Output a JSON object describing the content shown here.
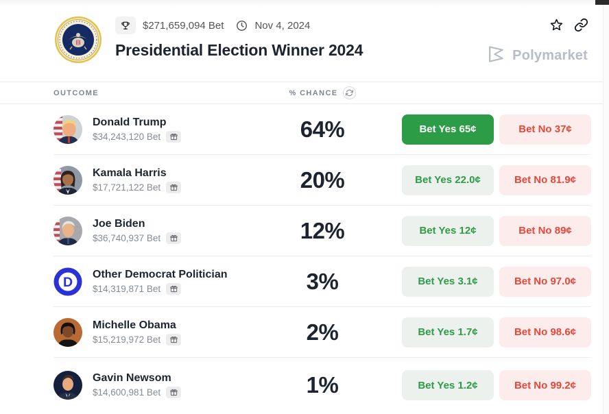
{
  "header": {
    "volume": "$271,659,094 Bet",
    "date": "Nov 4, 2024",
    "title": "Presidential Election Winner 2024",
    "brand": "Polymarket"
  },
  "table": {
    "outcome_header": "OUTCOME",
    "chance_header": "% CHANCE",
    "rows": [
      {
        "name": "Donald Trump",
        "bet": "$34,243,120 Bet",
        "chance": "64%",
        "yes_label": "Bet Yes 65¢",
        "no_label": "Bet No 37¢",
        "yes_variant": "solid",
        "avatar": "donald-trump-photo"
      },
      {
        "name": "Kamala Harris",
        "bet": "$17,721,122 Bet",
        "chance": "20%",
        "yes_label": "Bet Yes 22.0¢",
        "no_label": "Bet No 81.9¢",
        "yes_variant": "soft",
        "avatar": "kamala-harris-photo"
      },
      {
        "name": "Joe Biden",
        "bet": "$36,740,937 Bet",
        "chance": "12%",
        "yes_label": "Bet Yes 12¢",
        "no_label": "Bet No 89¢",
        "yes_variant": "soft",
        "avatar": "joe-biden-photo"
      },
      {
        "name": "Other Democrat Politician",
        "bet": "$14,319,871 Bet",
        "chance": "3%",
        "yes_label": "Bet Yes 3.1¢",
        "no_label": "Bet No 97.0¢",
        "yes_variant": "soft",
        "avatar": "democrat-party-logo"
      },
      {
        "name": "Michelle Obama",
        "bet": "$15,219,972 Bet",
        "chance": "2%",
        "yes_label": "Bet Yes 1.7¢",
        "no_label": "Bet No 98.6¢",
        "yes_variant": "soft",
        "avatar": "michelle-obama-photo"
      },
      {
        "name": "Gavin Newsom",
        "bet": "$14,600,981 Bet",
        "chance": "1%",
        "yes_label": "Bet Yes 1.2¢",
        "no_label": "Bet No 99.2¢",
        "yes_variant": "soft",
        "avatar": "gavin-newsom-photo"
      }
    ]
  },
  "icons": {
    "trophy": "trophy-icon",
    "clock": "clock-icon",
    "star": "star-icon",
    "link": "link-icon",
    "refresh": "refresh-icon",
    "gift": "gift-icon"
  },
  "colors": {
    "yes_green": "#2d9c46",
    "yes_green_soft_bg": "#ecf1ed",
    "no_red": "#e5483a",
    "no_red_soft_bg": "#fcedec",
    "text_dark": "#1c2430",
    "text_muted": "#848b94",
    "brand_gray": "#b6bcc8",
    "divider": "#ececec"
  }
}
